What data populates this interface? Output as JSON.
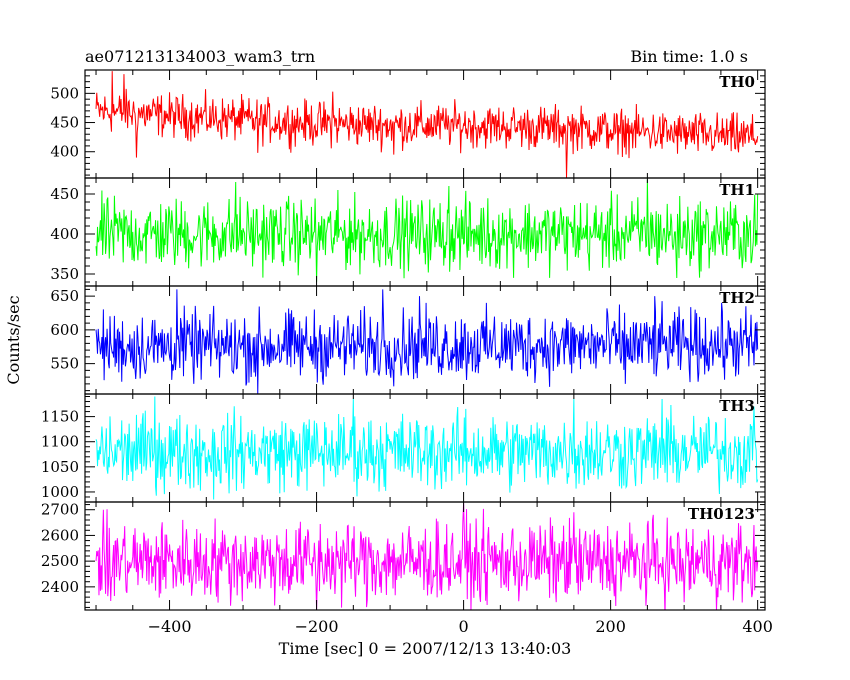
{
  "title_left": "ae071213134003_wam3_trn",
  "title_right": "Bin time: 1.0 s",
  "ylabel": "Counts/sec",
  "xlabel": "Time [sec] 0 = 2007/12/13 13:40:03",
  "chart_data": {
    "type": "line",
    "x_range": [
      -500,
      400
    ],
    "xlim": [
      -515,
      410
    ],
    "bin_time_s": 1.0,
    "x_ticks": [
      -400,
      -200,
      0,
      200,
      400
    ],
    "x_tick_labels": [
      "−400",
      "−200",
      "0",
      "200",
      "400"
    ],
    "panels": [
      {
        "name": "TH0",
        "color": "#ff0000",
        "ylim": [
          355,
          540
        ],
        "yticks": [
          400,
          450,
          500
        ],
        "mean_trend": [
          [
            -500,
            470
          ],
          [
            -350,
            458
          ],
          [
            -200,
            448
          ],
          [
            -50,
            445
          ],
          [
            0,
            445
          ],
          [
            150,
            440
          ],
          [
            300,
            430
          ],
          [
            400,
            425
          ]
        ],
        "noise_amplitude": 55,
        "spikes": [
          [
            -478,
            538
          ],
          [
            -462,
            533
          ],
          [
            -445,
            390
          ],
          [
            -280,
            398
          ],
          [
            -178,
            503
          ],
          [
            -95,
            395
          ],
          [
            140,
            355
          ],
          [
            210,
            395
          ],
          [
            370,
            405
          ]
        ]
      },
      {
        "name": "TH1",
        "color": "#00ff00",
        "ylim": [
          335,
          470
        ],
        "yticks": [
          350,
          400,
          450
        ],
        "mean_trend": [
          [
            -500,
            400
          ],
          [
            400,
            400
          ]
        ],
        "noise_amplitude": 65,
        "spikes": [
          [
            -310,
            465
          ],
          [
            -200,
            340
          ],
          [
            -20,
            460
          ],
          [
            250,
            468
          ],
          [
            290,
            345
          ],
          [
            400,
            450
          ]
        ]
      },
      {
        "name": "TH2",
        "color": "#0000ff",
        "ylim": [
          505,
          665
        ],
        "yticks": [
          550,
          600,
          650
        ],
        "mean_trend": [
          [
            -500,
            575
          ],
          [
            400,
            578
          ]
        ],
        "noise_amplitude": 75,
        "spikes": [
          [
            -390,
            660
          ],
          [
            -280,
            505
          ],
          [
            -110,
            660
          ],
          [
            -60,
            650
          ],
          [
            220,
            520
          ],
          [
            260,
            650
          ]
        ]
      },
      {
        "name": "TH3",
        "color": "#00ffff",
        "ylim": [
          980,
          1195
        ],
        "yticks": [
          1000,
          1050,
          1100,
          1150
        ],
        "mean_trend": [
          [
            -500,
            1080
          ],
          [
            400,
            1080
          ]
        ],
        "noise_amplitude": 110,
        "spikes": [
          [
            -420,
            1190
          ],
          [
            -340,
            985
          ],
          [
            -150,
            1185
          ],
          [
            150,
            1185
          ],
          [
            270,
            1185
          ],
          [
            395,
            1170
          ]
        ]
      },
      {
        "name": "TH0123",
        "color": "#ff00ff",
        "ylim": [
          2310,
          2730
        ],
        "yticks": [
          2400,
          2500,
          2600,
          2700
        ],
        "mean_trend": [
          [
            -500,
            2500
          ],
          [
            400,
            2495
          ]
        ],
        "noise_amplitude": 230,
        "spikes": [
          [
            0,
            2725
          ],
          [
            -480,
            2345
          ],
          [
            -200,
            2310
          ],
          [
            300,
            2340
          ],
          [
            150,
            2690
          ]
        ]
      }
    ]
  }
}
